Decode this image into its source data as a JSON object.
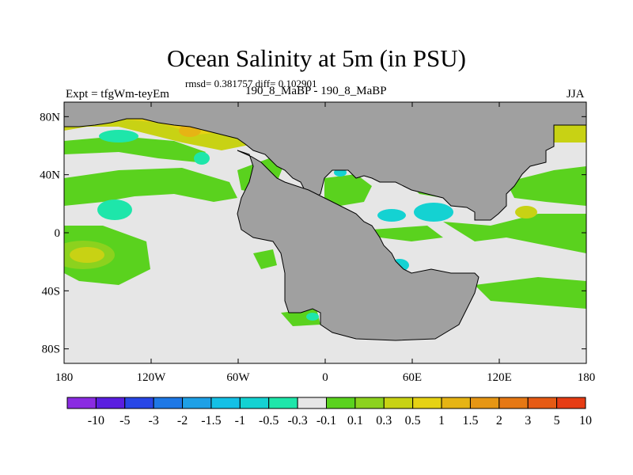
{
  "chart_data": {
    "type": "heatmap",
    "title": "Ocean Salinity at 5m (in PSU)",
    "stats_line": "rmsd= 0.381757 diff= 0.102901",
    "left_label": "Expt = tfgWm-teyEm",
    "center_label": "190_8_MaBP - 190_8_MaBP",
    "right_label": "JJA",
    "x_ticks": [
      "180",
      "120W",
      "60W",
      "0",
      "60E",
      "120E",
      "180"
    ],
    "x_tick_values": [
      -180,
      -120,
      -60,
      0,
      60,
      120,
      180
    ],
    "y_ticks": [
      "80N",
      "40N",
      "0",
      "40S",
      "80S"
    ],
    "y_tick_values": [
      80,
      40,
      0,
      -40,
      -80
    ],
    "xlim": [
      -180,
      180
    ],
    "ylim": [
      -90,
      90
    ],
    "colorbar": {
      "levels": [
        "-10",
        "-5",
        "-3",
        "-2",
        "-1.5",
        "-1",
        "-0.5",
        "-0.3",
        "-0.1",
        "0.1",
        "0.3",
        "0.5",
        "1",
        "1.5",
        "2",
        "3",
        "5",
        "10"
      ],
      "colors": [
        "#8a2be2",
        "#5a1ee0",
        "#2846e6",
        "#1e78e6",
        "#1ea0e6",
        "#14c0e6",
        "#14d2d2",
        "#1ee6aa",
        "#e6e6e6",
        "#5ad21e",
        "#8cd21e",
        "#c8d214",
        "#e6d214",
        "#e6b414",
        "#e69614",
        "#e67814",
        "#e65a14",
        "#e63c14"
      ]
    },
    "land_color": "#a0a0a0"
  }
}
